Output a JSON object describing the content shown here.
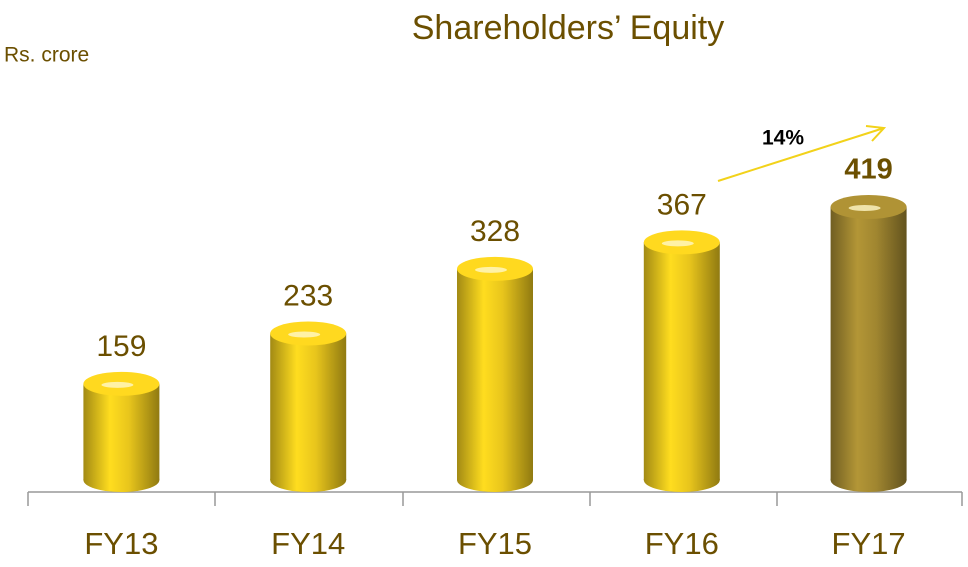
{
  "chart_data": {
    "type": "bar",
    "title": "Shareholders’ Equity",
    "unit_label": "Rs. crore",
    "categories": [
      "FY13",
      "FY14",
      "FY15",
      "FY16",
      "FY17"
    ],
    "values": [
      159,
      233,
      328,
      367,
      419
    ],
    "colors": [
      "#e8c51c",
      "#e8c51c",
      "#e8c51c",
      "#e8c51c",
      "#a08630"
    ],
    "annotation": "14%"
  }
}
